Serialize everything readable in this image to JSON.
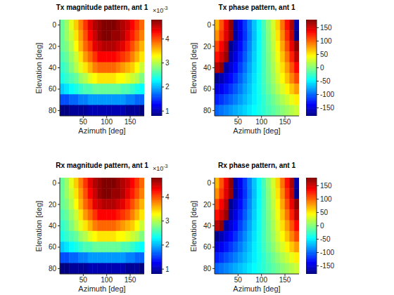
{
  "chart_data": [
    {
      "type": "heatmap",
      "title": "Tx magnitude pattern, ant 1",
      "x_label": "Azimuth [deg]",
      "y_label": "Elevation [deg]",
      "x": [
        5,
        15,
        25,
        35,
        45,
        55,
        65,
        75,
        85,
        95,
        105,
        115,
        125,
        135,
        145,
        155,
        165,
        175
      ],
      "y": [
        0,
        10,
        20,
        30,
        40,
        50,
        60,
        70,
        80
      ],
      "xlim": [
        0,
        180
      ],
      "ylim": [
        -5,
        85
      ],
      "xticks": [
        50,
        100,
        150
      ],
      "yticks": [
        0,
        20,
        40,
        60,
        80
      ],
      "cells": [
        [
          2.7,
          2.9,
          3.2,
          3.5,
          3.8,
          4.1,
          4.4,
          4.6,
          4.7,
          4.8,
          4.8,
          4.8,
          4.7,
          4.6,
          4.5,
          4.3,
          4.1,
          3.9
        ],
        [
          2.7,
          2.9,
          3.1,
          3.4,
          3.7,
          4.0,
          4.3,
          4.5,
          4.7,
          4.8,
          4.8,
          4.7,
          4.7,
          4.6,
          4.4,
          4.2,
          4.0,
          3.8
        ],
        [
          2.7,
          2.8,
          3.0,
          3.3,
          3.6,
          3.9,
          4.1,
          4.4,
          4.5,
          4.6,
          4.6,
          4.6,
          4.5,
          4.4,
          4.2,
          4.0,
          3.8,
          3.6
        ],
        [
          2.6,
          2.7,
          2.9,
          3.1,
          3.4,
          3.7,
          3.9,
          4.1,
          4.3,
          4.3,
          4.3,
          4.3,
          4.2,
          4.1,
          4.0,
          3.8,
          3.6,
          3.4
        ],
        [
          2.5,
          2.6,
          2.8,
          3.0,
          3.2,
          3.4,
          3.6,
          3.8,
          3.9,
          3.9,
          3.9,
          3.9,
          3.8,
          3.7,
          3.6,
          3.5,
          3.3,
          3.1
        ],
        [
          2.4,
          2.5,
          2.6,
          2.7,
          2.9,
          3.0,
          3.2,
          3.3,
          3.4,
          3.4,
          3.4,
          3.4,
          3.3,
          3.3,
          3.2,
          3.1,
          3.0,
          2.8
        ],
        [
          2.1,
          2.2,
          2.3,
          2.4,
          2.5,
          2.6,
          2.6,
          2.7,
          2.7,
          2.7,
          2.7,
          2.7,
          2.7,
          2.6,
          2.6,
          2.5,
          2.4,
          2.3
        ],
        [
          1.6,
          1.6,
          1.7,
          1.7,
          1.8,
          1.8,
          1.9,
          1.9,
          1.9,
          1.9,
          1.9,
          1.9,
          1.9,
          1.9,
          1.8,
          1.8,
          1.7,
          1.7
        ],
        [
          0.8,
          0.8,
          0.9,
          0.9,
          0.9,
          0.9,
          1.0,
          1.0,
          1.0,
          1.0,
          1.0,
          1.0,
          1.0,
          1.0,
          0.9,
          0.9,
          0.9,
          0.8
        ]
      ],
      "colorbar_range": [
        0.8,
        4.8
      ],
      "colorbar_ticks": [
        1,
        2,
        3,
        4
      ],
      "colorbar_multiplier": "×10",
      "colorbar_exponent": "-3"
    },
    {
      "type": "heatmap",
      "title": "Tx phase pattern, ant 1",
      "x_label": "Azimuth [deg]",
      "y_label": "Elevation [deg]",
      "x": [
        5,
        15,
        25,
        35,
        45,
        55,
        65,
        75,
        85,
        95,
        105,
        115,
        125,
        135,
        145,
        155,
        165,
        175
      ],
      "y": [
        0,
        10,
        20,
        30,
        40,
        50,
        60,
        70,
        80
      ],
      "xlim": [
        0,
        180
      ],
      "ylim": [
        -5,
        85
      ],
      "xticks": [
        50,
        100,
        150
      ],
      "yticks": [
        0,
        20,
        40,
        60,
        80
      ],
      "cells": [
        [
          70,
          105,
          140,
          175,
          -165,
          -140,
          -115,
          -90,
          -65,
          -42,
          -20,
          5,
          30,
          60,
          95,
          130,
          165,
          -165
        ],
        [
          85,
          115,
          145,
          172,
          -168,
          -142,
          -117,
          -92,
          -67,
          -44,
          -22,
          2,
          26,
          54,
          86,
          120,
          155,
          -175
        ],
        [
          110,
          135,
          160,
          -175,
          -155,
          -132,
          -110,
          -87,
          -64,
          -43,
          -22,
          0,
          22,
          48,
          76,
          108,
          142,
          175
        ],
        [
          130,
          150,
          170,
          -165,
          -145,
          -124,
          -103,
          -82,
          -61,
          -41,
          -22,
          -2,
          18,
          40,
          66,
          94,
          124,
          158
        ],
        [
          160,
          175,
          -168,
          -150,
          -132,
          -113,
          -95,
          -76,
          -58,
          -40,
          -22,
          -4,
          14,
          34,
          56,
          80,
          106,
          134
        ],
        [
          -175,
          -162,
          -148,
          -133,
          -118,
          -102,
          -86,
          -70,
          -54,
          -38,
          -22,
          -6,
          10,
          28,
          46,
          66,
          88,
          110
        ],
        [
          -150,
          -140,
          -128,
          -116,
          -104,
          -91,
          -78,
          -65,
          -51,
          -38,
          -24,
          -10,
          4,
          18,
          32,
          48,
          64,
          80
        ],
        [
          -125,
          -117,
          -108,
          -99,
          -90,
          -80,
          -70,
          -60,
          -50,
          -39,
          -28,
          -17,
          -6,
          5,
          16,
          27,
          38,
          50
        ],
        [
          -100,
          -94,
          -88,
          -81,
          -74,
          -67,
          -60,
          -52,
          -45,
          -37,
          -29,
          -21,
          -13,
          -5,
          3,
          11,
          19,
          27
        ]
      ],
      "colorbar_range": [
        -180,
        180
      ],
      "colorbar_ticks": [
        -150,
        -100,
        -50,
        0,
        50,
        100,
        150
      ]
    },
    {
      "type": "heatmap",
      "title": "Rx magnitude pattern, ant 1",
      "x_label": "Azimuth [deg]",
      "y_label": "Elevation [deg]",
      "x": [
        5,
        15,
        25,
        35,
        45,
        55,
        65,
        75,
        85,
        95,
        105,
        115,
        125,
        135,
        145,
        155,
        165,
        175
      ],
      "y": [
        0,
        10,
        20,
        30,
        40,
        50,
        60,
        70,
        80
      ],
      "xlim": [
        0,
        180
      ],
      "ylim": [
        -5,
        85
      ],
      "xticks": [
        50,
        100,
        150
      ],
      "yticks": [
        0,
        20,
        40,
        60,
        80
      ],
      "cells": [
        [
          2.7,
          2.9,
          3.2,
          3.5,
          3.8,
          4.1,
          4.4,
          4.6,
          4.7,
          4.8,
          4.8,
          4.8,
          4.7,
          4.6,
          4.5,
          4.3,
          4.1,
          3.9
        ],
        [
          2.7,
          2.9,
          3.1,
          3.4,
          3.7,
          4.0,
          4.3,
          4.5,
          4.7,
          4.8,
          4.8,
          4.7,
          4.7,
          4.6,
          4.4,
          4.2,
          4.0,
          3.8
        ],
        [
          2.7,
          2.8,
          3.0,
          3.3,
          3.6,
          3.9,
          4.1,
          4.4,
          4.5,
          4.6,
          4.6,
          4.6,
          4.5,
          4.4,
          4.2,
          4.0,
          3.8,
          3.6
        ],
        [
          2.6,
          2.7,
          2.9,
          3.1,
          3.4,
          3.7,
          3.9,
          4.1,
          4.3,
          4.3,
          4.3,
          4.3,
          4.2,
          4.1,
          4.0,
          3.8,
          3.6,
          3.4
        ],
        [
          2.5,
          2.6,
          2.8,
          3.0,
          3.2,
          3.4,
          3.6,
          3.8,
          3.9,
          3.9,
          3.9,
          3.9,
          3.8,
          3.7,
          3.6,
          3.5,
          3.3,
          3.1
        ],
        [
          2.4,
          2.5,
          2.6,
          2.7,
          2.9,
          3.0,
          3.2,
          3.3,
          3.4,
          3.4,
          3.4,
          3.4,
          3.3,
          3.3,
          3.2,
          3.1,
          3.0,
          2.8
        ],
        [
          2.1,
          2.2,
          2.3,
          2.4,
          2.5,
          2.6,
          2.6,
          2.7,
          2.7,
          2.7,
          2.7,
          2.7,
          2.7,
          2.6,
          2.6,
          2.5,
          2.4,
          2.3
        ],
        [
          1.6,
          1.6,
          1.7,
          1.7,
          1.8,
          1.8,
          1.9,
          1.9,
          1.9,
          1.9,
          1.9,
          1.9,
          1.9,
          1.9,
          1.8,
          1.8,
          1.7,
          1.7
        ],
        [
          0.8,
          0.8,
          0.9,
          0.9,
          0.9,
          0.9,
          1.0,
          1.0,
          1.0,
          1.0,
          1.0,
          1.0,
          1.0,
          1.0,
          0.9,
          0.9,
          0.9,
          0.8
        ]
      ],
      "colorbar_range": [
        0.8,
        4.8
      ],
      "colorbar_ticks": [
        1,
        2,
        3,
        4
      ],
      "colorbar_multiplier": "×10",
      "colorbar_exponent": "-3"
    },
    {
      "type": "heatmap",
      "title": "Rx phase pattern, ant 1",
      "x_label": "Azimuth [deg]",
      "y_label": "Elevation [deg]",
      "x": [
        5,
        15,
        25,
        35,
        45,
        55,
        65,
        75,
        85,
        95,
        105,
        115,
        125,
        135,
        145,
        155,
        165,
        175
      ],
      "y": [
        0,
        10,
        20,
        30,
        40,
        50,
        60,
        70,
        80
      ],
      "xlim": [
        0,
        180
      ],
      "ylim": [
        -5,
        85
      ],
      "xticks": [
        50,
        100,
        150
      ],
      "yticks": [
        0,
        20,
        40,
        60,
        80
      ],
      "cells": [
        [
          70,
          105,
          140,
          175,
          -165,
          -140,
          -115,
          -90,
          -65,
          -42,
          -20,
          5,
          30,
          60,
          95,
          130,
          165,
          -165
        ],
        [
          85,
          115,
          145,
          172,
          -168,
          -142,
          -117,
          -92,
          -67,
          -44,
          -22,
          2,
          26,
          54,
          86,
          120,
          155,
          -175
        ],
        [
          110,
          135,
          160,
          -175,
          -155,
          -132,
          -110,
          -87,
          -64,
          -43,
          -22,
          0,
          22,
          48,
          76,
          108,
          142,
          175
        ],
        [
          130,
          150,
          170,
          -165,
          -145,
          -124,
          -103,
          -82,
          -61,
          -41,
          -22,
          -2,
          18,
          40,
          66,
          94,
          124,
          158
        ],
        [
          160,
          175,
          -168,
          -150,
          -132,
          -113,
          -95,
          -76,
          -58,
          -40,
          -22,
          -4,
          14,
          34,
          56,
          80,
          106,
          134
        ],
        [
          -175,
          -162,
          -148,
          -133,
          -118,
          -102,
          -86,
          -70,
          -54,
          -38,
          -22,
          -6,
          10,
          28,
          46,
          66,
          88,
          110
        ],
        [
          -150,
          -140,
          -128,
          -116,
          -104,
          -91,
          -78,
          -65,
          -51,
          -38,
          -24,
          -10,
          4,
          18,
          32,
          48,
          64,
          80
        ],
        [
          -125,
          -117,
          -108,
          -99,
          -90,
          -80,
          -70,
          -60,
          -50,
          -39,
          -28,
          -17,
          -6,
          5,
          16,
          27,
          38,
          50
        ],
        [
          -100,
          -94,
          -88,
          -81,
          -74,
          -67,
          -60,
          -52,
          -45,
          -37,
          -29,
          -21,
          -13,
          -5,
          3,
          11,
          19,
          27
        ]
      ],
      "colorbar_range": [
        -180,
        180
      ],
      "colorbar_ticks": [
        -150,
        -100,
        -50,
        0,
        50,
        100,
        150
      ]
    }
  ]
}
